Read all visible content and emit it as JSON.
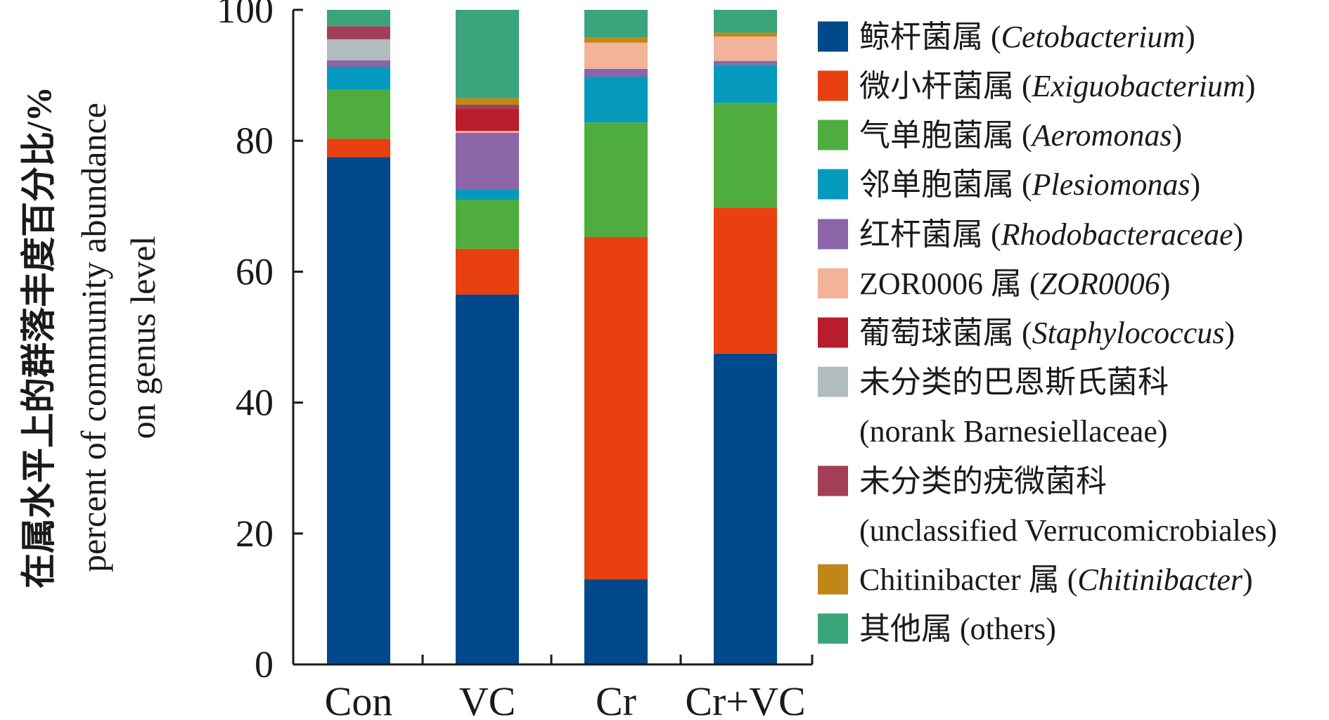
{
  "chart_data": {
    "type": "bar",
    "stacked": true,
    "categories": [
      "Con",
      "VC",
      "Cr",
      "Cr+VC"
    ],
    "ylim": [
      0,
      100
    ],
    "yticks": [
      "0",
      "20",
      "40",
      "60",
      "80",
      "100"
    ],
    "ylabel_lines": [
      "在属水平上的群落丰度百分比/%",
      "percent of community abundance",
      "on genus level"
    ],
    "xlabel": "",
    "series": [
      {
        "name": "Cetobacterium",
        "label_cn": "鲸杆菌属",
        "label_latin": "Cetobacterium",
        "color": "#004a8c",
        "values": [
          77.5,
          56.5,
          13.0,
          47.5
        ]
      },
      {
        "name": "Exiguobacterium",
        "label_cn": "微小杆菌属",
        "label_latin": "Exiguobacterium",
        "color": "#e84011",
        "values": [
          2.8,
          7.0,
          52.3,
          22.3
        ]
      },
      {
        "name": "Aeromonas",
        "label_cn": "气单胞菌属",
        "label_latin": "Aeromonas",
        "color": "#4fad40",
        "values": [
          7.5,
          7.5,
          17.5,
          16.0
        ]
      },
      {
        "name": "Plesiomonas",
        "label_cn": "邻单胞菌属",
        "label_latin": "Plesiomonas",
        "color": "#0599be",
        "values": [
          3.5,
          1.5,
          7.0,
          5.8
        ]
      },
      {
        "name": "Rhodobacteraceae",
        "label_cn": "红杆菌属",
        "label_latin": "Rhodobacteraceae",
        "color": "#8b65a8",
        "values": [
          1.0,
          8.7,
          1.2,
          0.6
        ]
      },
      {
        "name": "ZOR0006",
        "label_cn": "ZOR0006 属",
        "label_latin": "ZOR0006",
        "color": "#f3b39a",
        "values": [
          0.0,
          0.3,
          4.0,
          3.7
        ]
      },
      {
        "name": "Staphylococcus",
        "label_cn": "葡萄球菌属",
        "label_latin": "Staphylococcus",
        "color": "#b91c2c",
        "values": [
          0.0,
          3.3,
          0.0,
          0.0
        ]
      },
      {
        "name": "norank Barnesiellaceae",
        "label_cn": "未分类的巴恩斯氏菌科",
        "label_latin": "norank Barnesiellaceae",
        "color": "#b0bcbd",
        "values": [
          3.2,
          0.0,
          0.0,
          0.0
        ]
      },
      {
        "name": "unclassified Verrucomicrobiales",
        "label_cn": "未分类的疣微菌科",
        "label_latin": "unclassified Verrucomicrobiales",
        "color": "#a43e56",
        "values": [
          2.0,
          0.7,
          0.0,
          0.0
        ]
      },
      {
        "name": "Chitinibacter",
        "label_cn": "Chitinibacter 属",
        "label_latin": "Chitinibacter",
        "color": "#c08718",
        "values": [
          0.0,
          1.0,
          0.8,
          0.6
        ]
      },
      {
        "name": "others",
        "label_cn": "其他属",
        "label_latin": "others",
        "color": "#3aa57b",
        "values": [
          2.5,
          13.5,
          4.2,
          3.5
        ]
      }
    ]
  }
}
